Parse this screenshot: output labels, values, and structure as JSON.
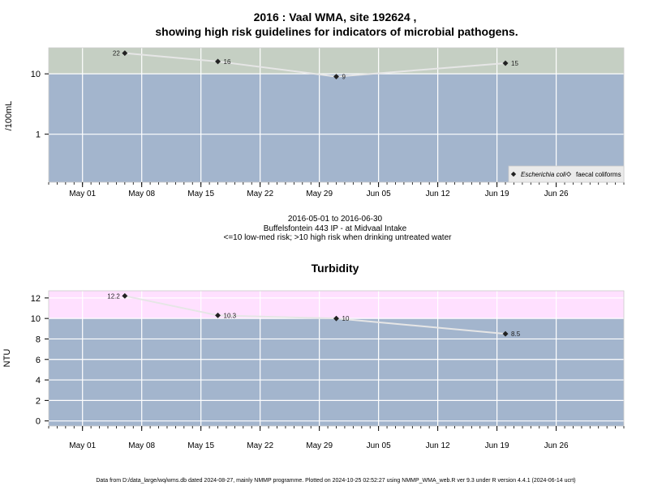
{
  "footer": "Data from D:/data_large/wq/wms.db dated 2024-08-27, mainly NMMP programme. Plotted on 2024-10-25 02:52:27 using NMMP_WMA_web.R ver 9.3 under R version 4.4.1 (2024-06-14 ucrt)",
  "colors": {
    "below_band": "#a3b5cd",
    "micro_high_band": "#c5cfc3",
    "turb_high_band": "#ffe0ff",
    "line": "#e6e6e6",
    "grid": "#ffffff",
    "point": "#222222"
  },
  "chart_data": [
    {
      "type": "line",
      "title": "2016 : Vaal WMA, site 192624 ,",
      "title_line2": "showing high risk guidelines for indicators of microbial pathogens.",
      "xlabel": "",
      "ylabel": "/100mL",
      "x_scale": "date",
      "y_scale": "log10",
      "xlim": [
        "2016-04-27",
        "2016-07-04"
      ],
      "ylim": [
        0.16,
        27
      ],
      "x_ticks": [
        "May 01",
        "May 08",
        "May 15",
        "May 22",
        "May 29",
        "Jun 05",
        "Jun 12",
        "Jun 19",
        "Jun 26"
      ],
      "x_tick_dates": [
        "2016-05-01",
        "2016-05-08",
        "2016-05-15",
        "2016-05-22",
        "2016-05-29",
        "2016-06-05",
        "2016-06-12",
        "2016-06-19",
        "2016-06-26"
      ],
      "y_ticks": [
        1,
        10
      ],
      "y_tick_labels": [
        "1",
        "10"
      ],
      "grid": true,
      "guideline": 10,
      "band_above": "high risk",
      "series": [
        {
          "name": "Escherichia coli",
          "marker": "filled-diamond",
          "x": [
            "2016-05-06",
            "2016-05-17",
            "2016-05-31",
            "2016-06-20"
          ],
          "y": [
            22,
            16,
            9,
            15
          ],
          "labels": [
            "22",
            "16",
            "9",
            "15"
          ]
        }
      ],
      "legend": {
        "position": "bottom-right",
        "entries": [
          {
            "label": "Escherichia coli",
            "marker": "filled-diamond",
            "italic": true
          },
          {
            "label": "faecal coliforms",
            "marker": "open-diamond",
            "italic": false
          }
        ]
      },
      "subtitle_lines": [
        "2016-05-01 to 2016-06-30",
        "Buffelsfontein 443 IP - at Midvaal Intake",
        "<=10 low-med risk; >10 high risk when drinking untreated water"
      ]
    },
    {
      "type": "line",
      "title": "Turbidity",
      "xlabel": "",
      "ylabel": "NTU",
      "x_scale": "date",
      "y_scale": "linear",
      "xlim": [
        "2016-04-27",
        "2016-07-04"
      ],
      "ylim": [
        -0.5,
        12.7
      ],
      "x_ticks": [
        "May 01",
        "May 08",
        "May 15",
        "May 22",
        "May 29",
        "Jun 05",
        "Jun 12",
        "Jun 19",
        "Jun 26"
      ],
      "x_tick_dates": [
        "2016-05-01",
        "2016-05-08",
        "2016-05-15",
        "2016-05-22",
        "2016-05-29",
        "2016-06-05",
        "2016-06-12",
        "2016-06-19",
        "2016-06-26"
      ],
      "y_ticks": [
        0,
        2,
        4,
        6,
        8,
        10,
        12
      ],
      "y_tick_labels": [
        "0",
        "2",
        "4",
        "6",
        "8",
        "10",
        "12"
      ],
      "grid": true,
      "guideline": 10,
      "band_above": "high",
      "series": [
        {
          "name": "",
          "marker": "filled-diamond",
          "x": [
            "2016-05-06",
            "2016-05-17",
            "2016-05-31",
            "2016-06-20"
          ],
          "y": [
            12.2,
            10.3,
            10,
            8.5
          ],
          "labels": [
            "12.2",
            "10.3",
            "10",
            "8.5"
          ]
        }
      ]
    }
  ]
}
